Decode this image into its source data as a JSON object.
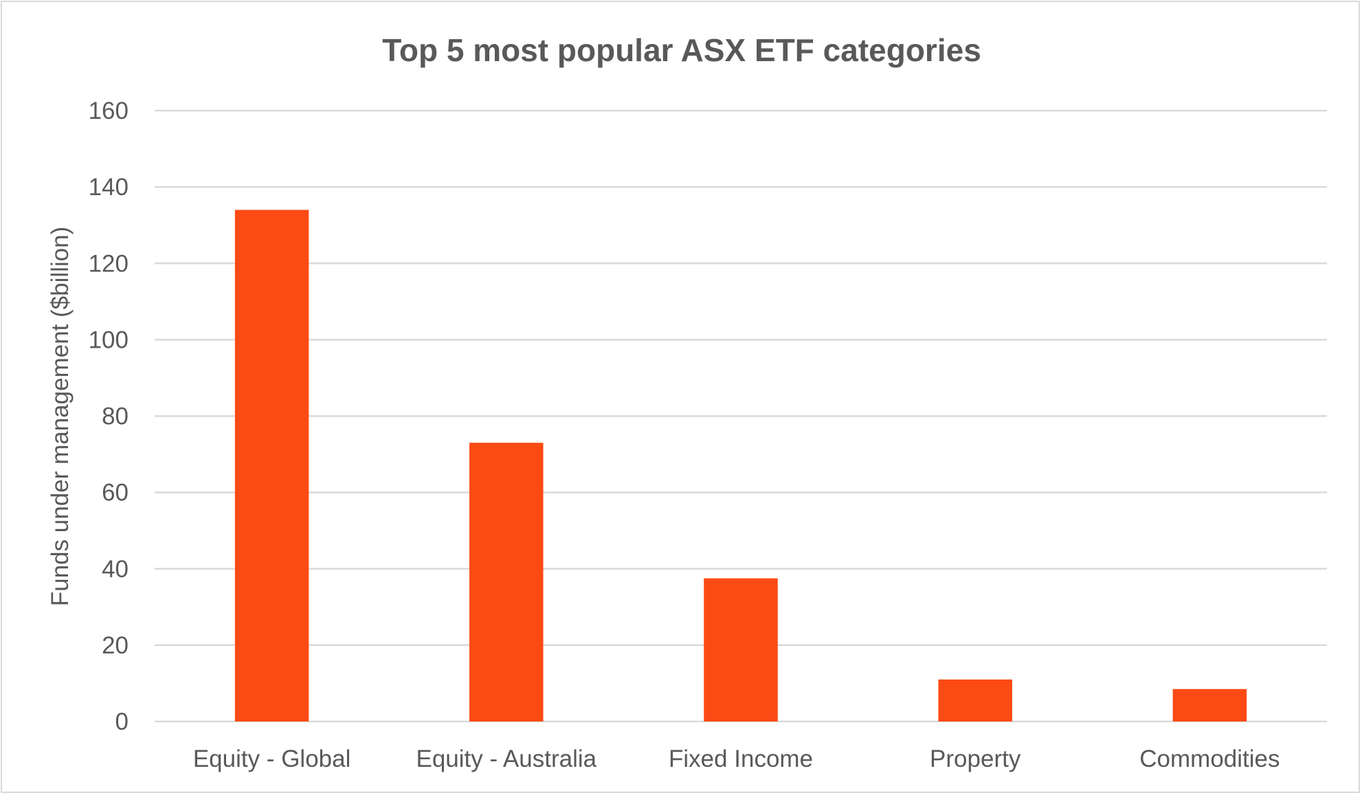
{
  "chart_data": {
    "type": "bar",
    "title": "Top 5 most popular ASX ETF categories",
    "xlabel": "",
    "ylabel": "Funds under management ($billion)",
    "categories": [
      "Equity - Global",
      "Equity - Australia",
      "Fixed Income",
      "Property",
      "Commodities"
    ],
    "values": [
      134,
      73,
      37.5,
      11,
      8.5
    ],
    "ylim": [
      0,
      160
    ],
    "yticks": [
      0,
      20,
      40,
      60,
      80,
      100,
      120,
      140,
      160
    ],
    "grid": true,
    "legend": "none",
    "bar_color": "#fc4a14"
  }
}
